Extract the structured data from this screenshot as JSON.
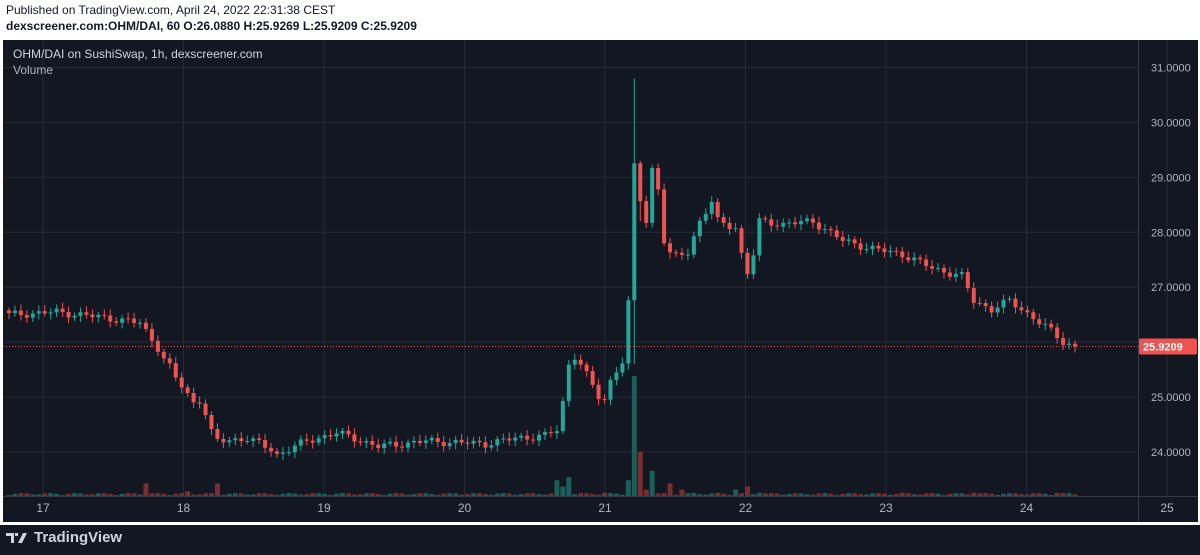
{
  "header": {
    "published": "Published on TradingView.com, April 24, 2022 22:31:38 CEST",
    "symbol_line": "dexscreener.com:OHM/DAI, 60 O:26.0880 H:25.9269 L:25.9209 C:25.9209"
  },
  "legend": {
    "title": "OHM/DAI on SushiSwap, 1h, dexscreener.com",
    "volume_label": "Volume"
  },
  "price_tag": "25.9209",
  "footer": {
    "brand": "TradingView"
  },
  "colors": {
    "up": "#26a69a",
    "down": "#ef5350",
    "grid": "#262a36",
    "text": "#b2b5be",
    "background": "#131722"
  },
  "chart_data": {
    "type": "candlestick",
    "title": "OHM/DAI on SushiSwap, 1h, dexscreener.com",
    "x_ticks": [
      "17",
      "18",
      "19",
      "20",
      "21",
      "22",
      "23",
      "24",
      "25"
    ],
    "y_ticks": [
      "24.0000",
      "25.0000",
      "26.0000",
      "27.0000",
      "28.0000",
      "29.0000",
      "30.0000",
      "31.0000"
    ],
    "ylim": [
      23.2,
      31.5
    ],
    "last_price": 25.9209,
    "series": [
      {
        "name": "OHM/DAI",
        "type": "price",
        "points": [
          [
            0,
            26.5
          ],
          [
            8,
            26.55
          ],
          [
            16,
            26.45
          ],
          [
            22,
            26.35
          ],
          [
            23,
            26.2
          ],
          [
            24,
            26.05
          ],
          [
            25,
            25.9
          ],
          [
            26,
            25.7
          ],
          [
            27,
            25.55
          ],
          [
            28,
            25.35
          ],
          [
            29,
            25.2
          ],
          [
            30,
            25.05
          ],
          [
            31,
            24.9
          ],
          [
            32,
            24.95
          ],
          [
            33,
            24.7
          ],
          [
            34,
            24.35
          ],
          [
            35,
            24.2
          ],
          [
            40,
            24.25
          ],
          [
            44,
            24.05
          ],
          [
            45,
            23.95
          ],
          [
            50,
            24.2
          ],
          [
            55,
            24.35
          ],
          [
            58,
            24.25
          ],
          [
            62,
            24.1
          ],
          [
            70,
            24.2
          ],
          [
            80,
            24.15
          ],
          [
            85,
            24.25
          ],
          [
            90,
            24.3
          ],
          [
            92,
            24.4
          ],
          [
            93,
            24.9
          ],
          [
            94,
            25.6
          ],
          [
            95,
            25.75
          ],
          [
            96,
            25.6
          ],
          [
            97,
            25.4
          ],
          [
            98,
            25.2
          ],
          [
            99,
            25.0
          ],
          [
            100,
            24.95
          ],
          [
            101,
            25.3
          ],
          [
            102,
            25.5
          ],
          [
            103,
            25.65
          ],
          [
            104,
            26.7
          ],
          [
            105,
            29.2
          ],
          [
            106,
            28.6
          ],
          [
            107,
            28.2
          ],
          [
            108,
            29.15
          ],
          [
            109,
            28.8
          ],
          [
            110,
            27.85
          ],
          [
            111,
            27.6
          ],
          [
            112,
            27.55
          ],
          [
            114,
            27.65
          ],
          [
            116,
            28.2
          ],
          [
            118,
            28.55
          ],
          [
            119,
            28.2
          ],
          [
            120,
            28.15
          ],
          [
            122,
            28.1
          ],
          [
            123,
            27.6
          ],
          [
            124,
            27.25
          ],
          [
            125,
            27.6
          ],
          [
            126,
            28.2
          ],
          [
            130,
            28.15
          ],
          [
            135,
            28.2
          ],
          [
            140,
            27.85
          ],
          [
            145,
            27.7
          ],
          [
            150,
            27.6
          ],
          [
            155,
            27.35
          ],
          [
            160,
            27.2
          ],
          [
            162,
            26.75
          ],
          [
            165,
            26.6
          ],
          [
            168,
            26.75
          ],
          [
            172,
            26.45
          ],
          [
            175,
            26.2
          ],
          [
            177,
            26.0
          ],
          [
            179,
            25.92
          ]
        ]
      },
      {
        "name": "Volume",
        "type": "volume",
        "points": [
          [
            0,
            0.3
          ],
          [
            23,
            4
          ],
          [
            30,
            1.5
          ],
          [
            35,
            4
          ],
          [
            92,
            5
          ],
          [
            93,
            3
          ],
          [
            94,
            6
          ],
          [
            100,
            1
          ],
          [
            104,
            5
          ],
          [
            105,
            38
          ],
          [
            106,
            14
          ],
          [
            107,
            2
          ],
          [
            108,
            8
          ],
          [
            111,
            4
          ],
          [
            113,
            2
          ],
          [
            115,
            1
          ],
          [
            119,
            1
          ],
          [
            122,
            2
          ],
          [
            124,
            3
          ],
          [
            126,
            1
          ],
          [
            150,
            1
          ],
          [
            162,
            1
          ],
          [
            176,
            1
          ]
        ]
      }
    ]
  }
}
